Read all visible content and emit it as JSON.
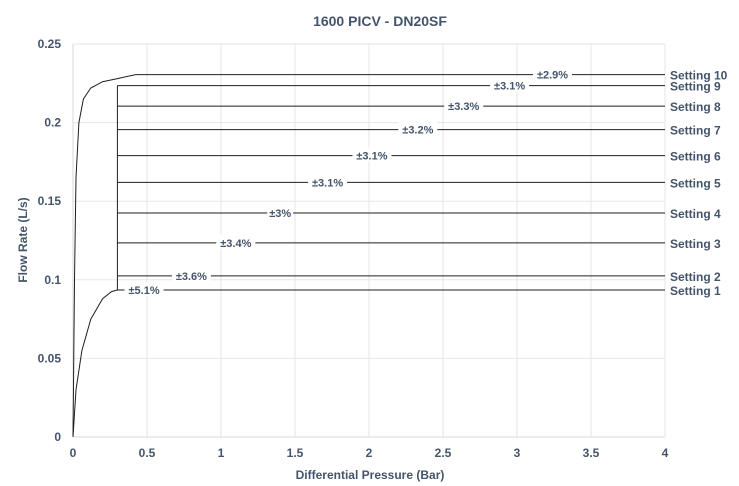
{
  "chart_data": {
    "type": "line",
    "title": "1600 PICV - DN20SF",
    "xlabel": "Differential Pressure (Bar)",
    "ylabel": "Flow Rate (L/s)",
    "xlim": [
      0,
      4
    ],
    "ylim": [
      0,
      0.25
    ],
    "x_ticks": [
      "0",
      "0.5",
      "1",
      "1.5",
      "2",
      "2.5",
      "3",
      "3.5",
      "4"
    ],
    "y_ticks": [
      "0",
      "0.05",
      "0.1",
      "0.15",
      "0.2",
      "0.25"
    ],
    "grid": true,
    "series": [
      {
        "name": "Setting 1",
        "flow": 0.0935,
        "tolerance": "±5.1%",
        "tolerance_at_pressure": 0.48
      },
      {
        "name": "Setting 2",
        "flow": 0.1025,
        "tolerance": "±3.6%",
        "tolerance_at_pressure": 0.8
      },
      {
        "name": "Setting 3",
        "flow": 0.1235,
        "tolerance": "±3.4%",
        "tolerance_at_pressure": 1.1
      },
      {
        "name": "Setting 4",
        "flow": 0.1425,
        "tolerance": "±3%",
        "tolerance_at_pressure": 1.4
      },
      {
        "name": "Setting 5",
        "flow": 0.162,
        "tolerance": "±3.1%",
        "tolerance_at_pressure": 1.72
      },
      {
        "name": "Setting 6",
        "flow": 0.179,
        "tolerance": "±3.1%",
        "tolerance_at_pressure": 2.02
      },
      {
        "name": "Setting 7",
        "flow": 0.1955,
        "tolerance": "±3.2%",
        "tolerance_at_pressure": 2.33
      },
      {
        "name": "Setting 8",
        "flow": 0.2105,
        "tolerance": "±3.3%",
        "tolerance_at_pressure": 2.64
      },
      {
        "name": "Setting 9",
        "flow": 0.2235,
        "tolerance": "±3.1%",
        "tolerance_at_pressure": 2.95
      },
      {
        "name": "Setting 10",
        "flow": 0.2305,
        "tolerance": "±2.9%",
        "tolerance_at_pressure": 3.24
      }
    ],
    "control_start_pressure": 0.3,
    "max_curve_knee_pressure": 0.42,
    "min_curve": [
      [
        0,
        0
      ],
      [
        0.02,
        0.03
      ],
      [
        0.06,
        0.055
      ],
      [
        0.12,
        0.075
      ],
      [
        0.2,
        0.088
      ],
      [
        0.26,
        0.0925
      ],
      [
        0.3,
        0.0935
      ]
    ],
    "max_curve": [
      [
        0,
        0
      ],
      [
        0.01,
        0.1
      ],
      [
        0.02,
        0.165
      ],
      [
        0.04,
        0.2
      ],
      [
        0.07,
        0.215
      ],
      [
        0.12,
        0.222
      ],
      [
        0.2,
        0.226
      ],
      [
        0.3,
        0.228
      ],
      [
        0.42,
        0.2305
      ]
    ]
  }
}
